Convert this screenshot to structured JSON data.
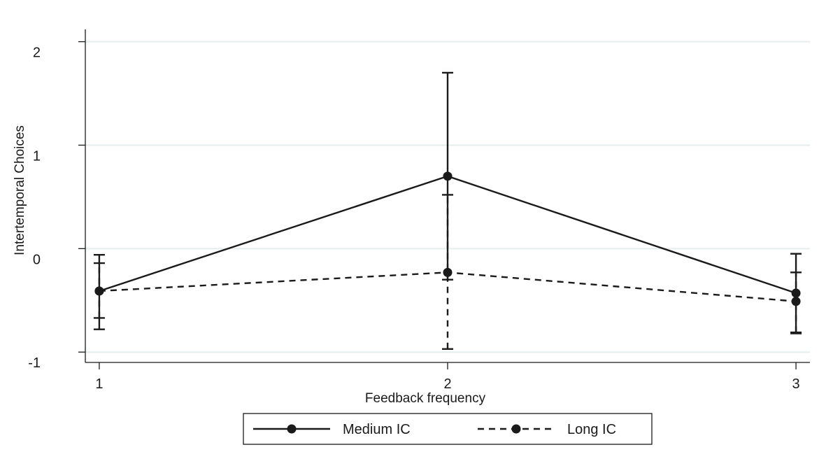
{
  "chart_data": {
    "type": "line",
    "title": "",
    "xlabel": "Feedback frequency",
    "ylabel": "Intertemporal Choices",
    "x": [
      1,
      2,
      3
    ],
    "x_tick_labels": [
      "1",
      "2",
      "3"
    ],
    "y_ticks": [
      -1,
      0,
      1,
      2
    ],
    "y_tick_labels": [
      "-1",
      "0",
      "1",
      "2"
    ],
    "xlim": [
      0.96,
      3.04
    ],
    "ylim": [
      -1.1,
      2.2
    ],
    "grid": true,
    "legend_position": "bottom",
    "series": [
      {
        "name": "Medium IC",
        "style": "solid",
        "color": "#1a1a1a",
        "values": [
          -0.41,
          0.7,
          -0.43
        ],
        "ci_lower": [
          -0.78,
          -0.3,
          -0.82
        ],
        "ci_upper": [
          -0.06,
          1.7,
          -0.05
        ]
      },
      {
        "name": "Long IC",
        "style": "dashed",
        "color": "#1a1a1a",
        "values": [
          -0.41,
          -0.23,
          -0.51
        ],
        "ci_lower": [
          -0.67,
          -0.97,
          -0.81
        ],
        "ci_upper": [
          -0.14,
          0.52,
          -0.23
        ]
      }
    ]
  }
}
